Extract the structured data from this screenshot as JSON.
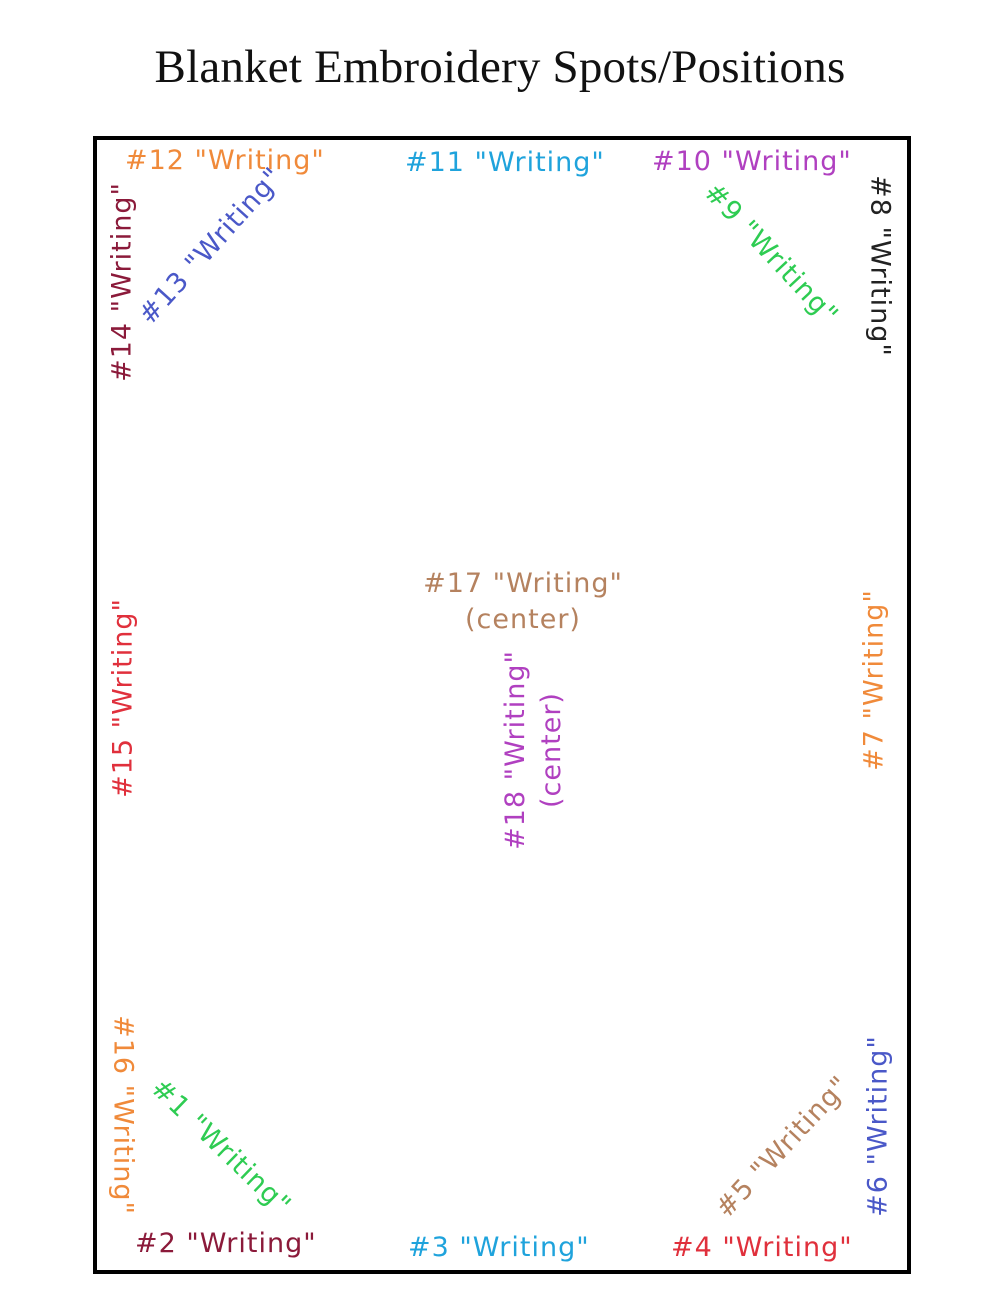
{
  "title": "Blanket Embroidery Spots/Positions",
  "spots": {
    "s1": "#1 \"Writing\"",
    "s2": "#2 \"Writing\"",
    "s3": "#3 \"Writing\"",
    "s4": "#4 \"Writing\"",
    "s5": "#5 \"Writing\"",
    "s6": "#6 \"Writing\"",
    "s7": "#7 \"Writing\"",
    "s8": "#8 \"Writing\"",
    "s9": "#9 \"Writing\"",
    "s10": "#10 \"Writing\"",
    "s11": "#11 \"Writing\"",
    "s12": "#12 \"Writing\"",
    "s13": "#13 \"Writing\"",
    "s14": "#14 \"Writing\"",
    "s15": "#15 \"Writing\"",
    "s16": "#16 \"Writing\"",
    "s17": "#17 \"Writing\"",
    "s17_sub": "(center)",
    "s18": "#18 \"Writing\"",
    "s18_sub": "(center)"
  },
  "colors": {
    "s1": "#2ecc52",
    "s2": "#8b1a3a",
    "s3": "#1fa3dc",
    "s4": "#e0303c",
    "s5": "#b5825f",
    "s6": "#4a58c8",
    "s7": "#f08a3a",
    "s8": "#222222",
    "s9": "#2ecc52",
    "s10": "#b040c0",
    "s11": "#1fa3dc",
    "s12": "#f08a3a",
    "s13": "#4a58c8",
    "s14": "#8b1a3a",
    "s15": "#e0303c",
    "s16": "#f08a3a",
    "s17": "#b5825f",
    "s18": "#b040c0"
  }
}
